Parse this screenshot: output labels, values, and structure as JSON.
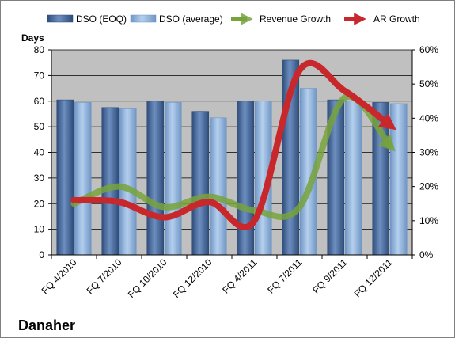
{
  "chart_data": {
    "type": "bar",
    "title": "Danaher",
    "y_axis_title": "Days",
    "categories": [
      "FQ 4/2010",
      "FQ 7/2010",
      "FQ 10/2010",
      "FQ 12/2010",
      "FQ 4/2011",
      "FQ 7/2011",
      "FQ 9/2011",
      "FQ 12/2011"
    ],
    "series": [
      {
        "name": "DSO (EOQ)",
        "kind": "bar",
        "axis": "left",
        "color": "#4a6ea0",
        "values": [
          60.5,
          57.5,
          60,
          56,
          60,
          76,
          60.5,
          59.5
        ]
      },
      {
        "name": "DSO (average)",
        "kind": "bar",
        "axis": "left",
        "color": "#8fb3dd",
        "values": [
          59.5,
          57,
          59.5,
          53.5,
          60,
          65,
          60,
          59
        ]
      },
      {
        "name": "Revenue Growth",
        "kind": "line",
        "axis": "right",
        "unit": "%",
        "color": "#77a33c",
        "values": [
          15,
          20,
          14,
          17,
          13,
          14,
          46,
          32
        ]
      },
      {
        "name": "AR Growth",
        "kind": "line",
        "axis": "right",
        "unit": "%",
        "color": "#c8272c",
        "values": [
          16,
          15.5,
          11,
          15.5,
          10,
          54,
          48,
          38
        ]
      }
    ],
    "left_axis": {
      "ylim": [
        0,
        80
      ],
      "ticks": [
        "0",
        "10",
        "20",
        "30",
        "40",
        "50",
        "60",
        "70",
        "80"
      ]
    },
    "right_axis": {
      "ylim": [
        0,
        60
      ],
      "ticks": [
        "0%",
        "10%",
        "20%",
        "30%",
        "40%",
        "50%",
        "60%"
      ]
    },
    "grid": true,
    "legend_position": "top",
    "colors": {
      "plot_background": "#c0c0c0",
      "gridline": "#000000"
    }
  }
}
